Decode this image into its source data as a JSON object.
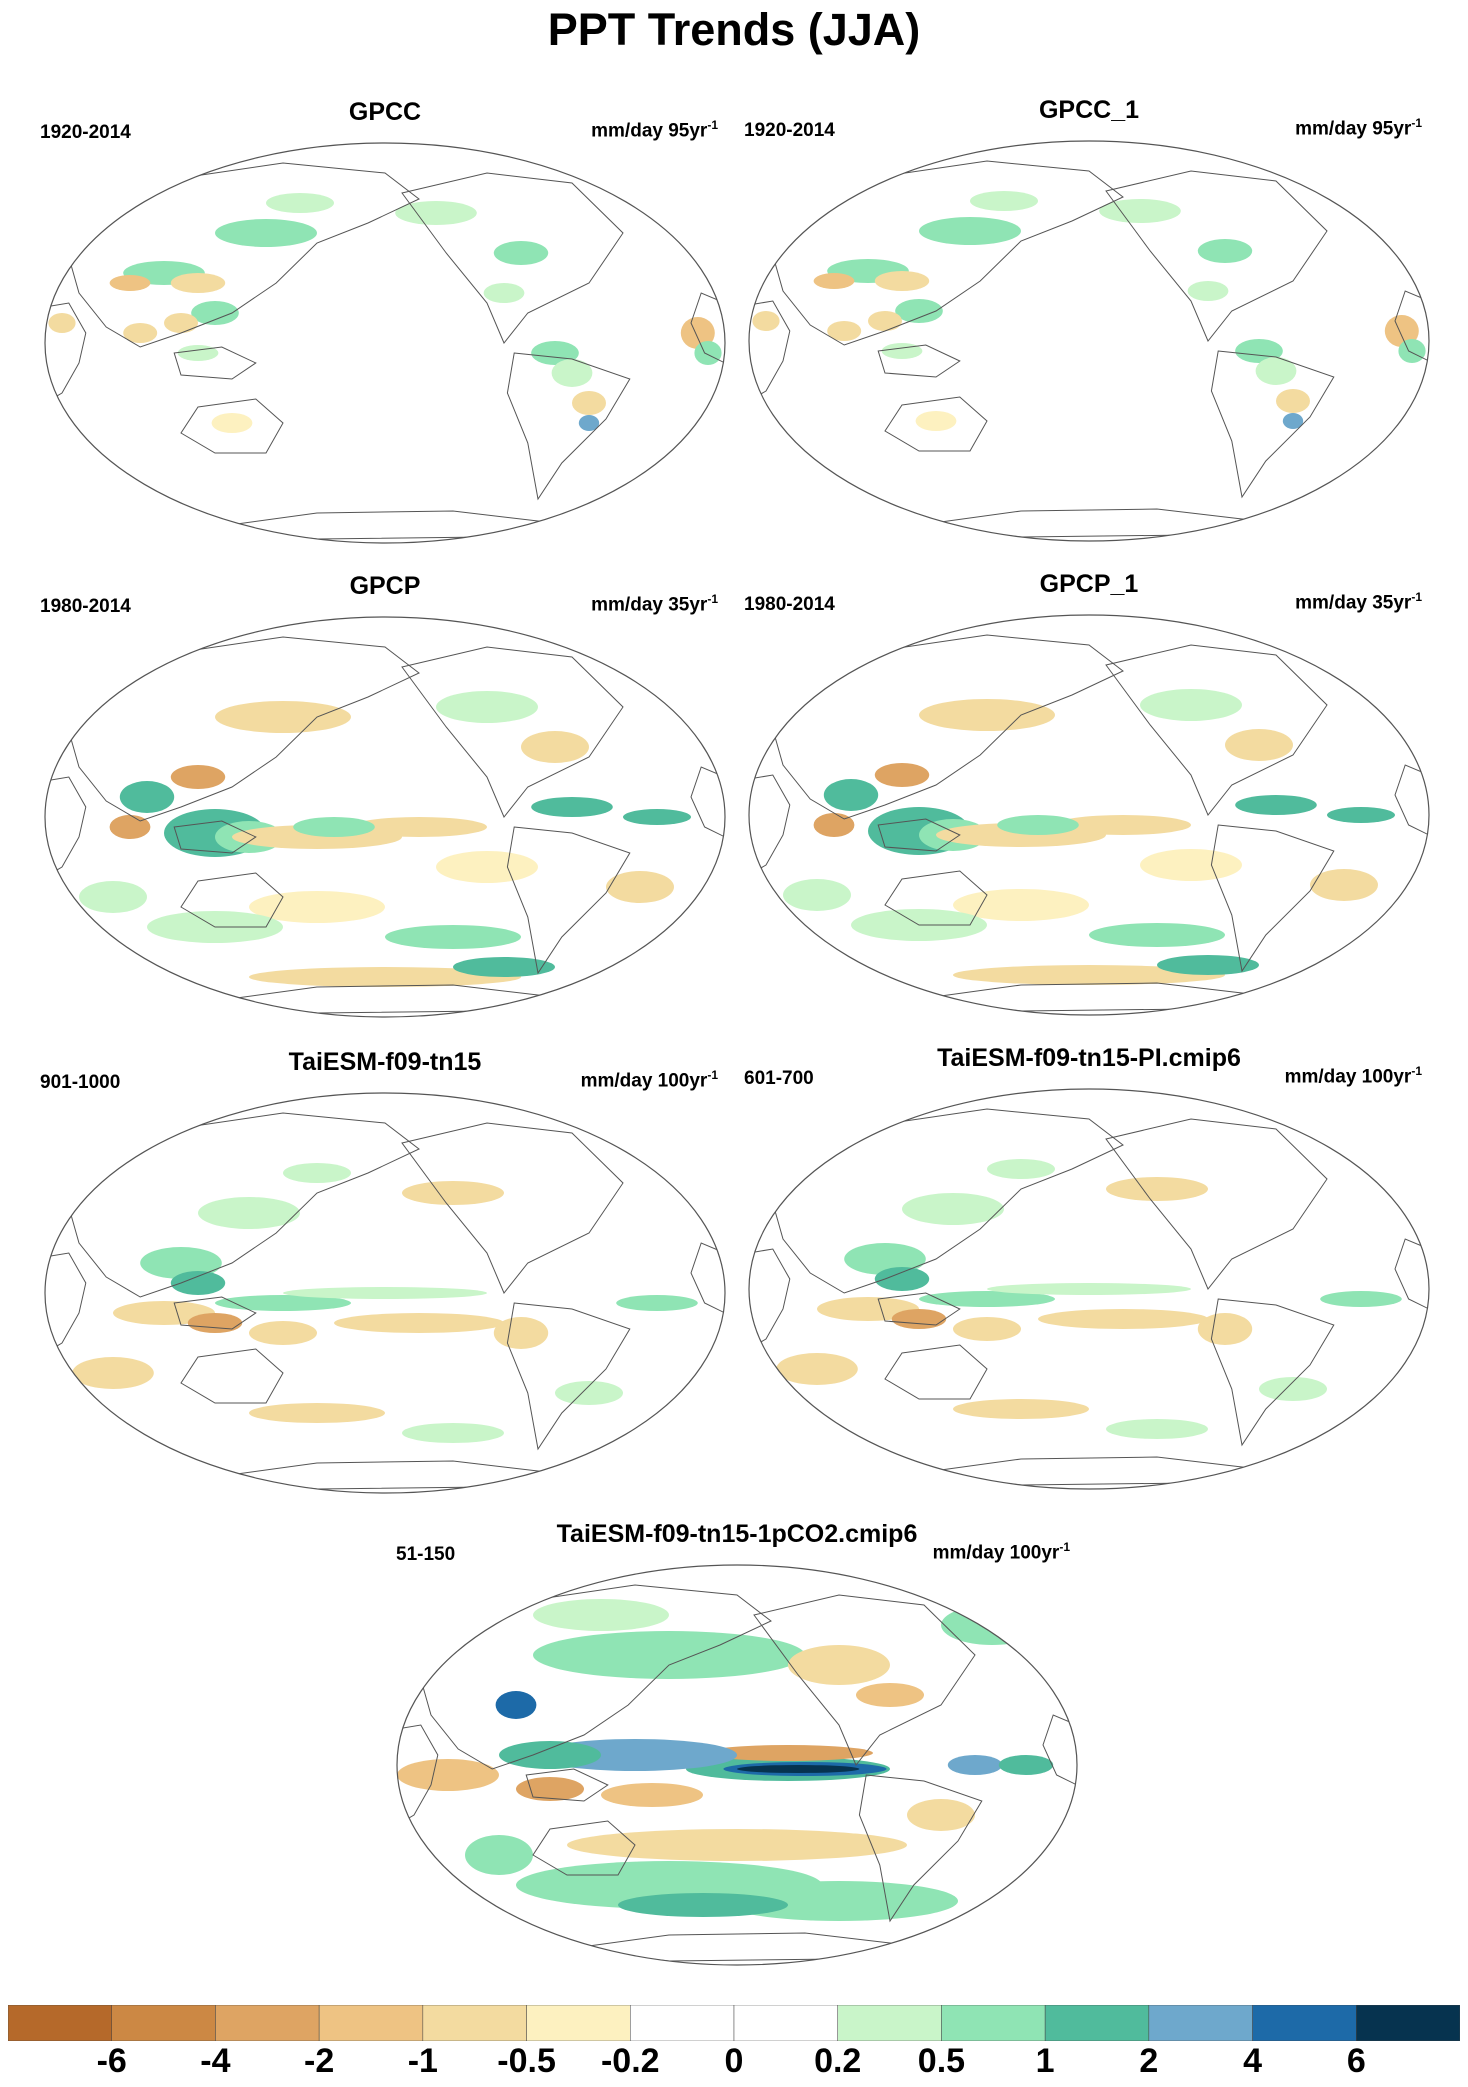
{
  "title": "PPT Trends (JJA)",
  "panels": [
    {
      "title": "GPCC",
      "years": "1920-2014",
      "units": "mm/day 95yr",
      "units_exp": "-1"
    },
    {
      "title": "GPCC_1",
      "years": "1920-2014",
      "units": "mm/day 95yr",
      "units_exp": "-1"
    },
    {
      "title": "GPCP",
      "years": "1980-2014",
      "units": "mm/day 35yr",
      "units_exp": "-1"
    },
    {
      "title": "GPCP_1",
      "years": "1980-2014",
      "units": "mm/day 35yr",
      "units_exp": "-1"
    },
    {
      "title": "TaiESM-f09-tn15",
      "years": "901-1000",
      "units": "mm/day 100yr",
      "units_exp": "-1"
    },
    {
      "title": "TaiESM-f09-tn15-PI.cmip6",
      "years": "601-700",
      "units": "mm/day 100yr",
      "units_exp": "-1"
    },
    {
      "title": "TaiESM-f09-tn15-1pCO2.cmip6",
      "years": "51-150",
      "units": "mm/day 100yr",
      "units_exp": "-1"
    }
  ],
  "colorbar": {
    "labels": [
      "-6",
      "-4",
      "-2",
      "-1",
      "-0.5",
      "-0.2",
      "0",
      "0.2",
      "0.5",
      "1",
      "2",
      "4",
      "6"
    ],
    "colors": [
      "#b5692a",
      "#cc8844",
      "#dea463",
      "#eec383",
      "#f3dba0",
      "#fdf1c0",
      "#ffffff",
      "#ffffff",
      "#c9f5c9",
      "#8fe4b4",
      "#50bb9c",
      "#6ea8cc",
      "#1d6aa8",
      "#06334f"
    ]
  }
}
